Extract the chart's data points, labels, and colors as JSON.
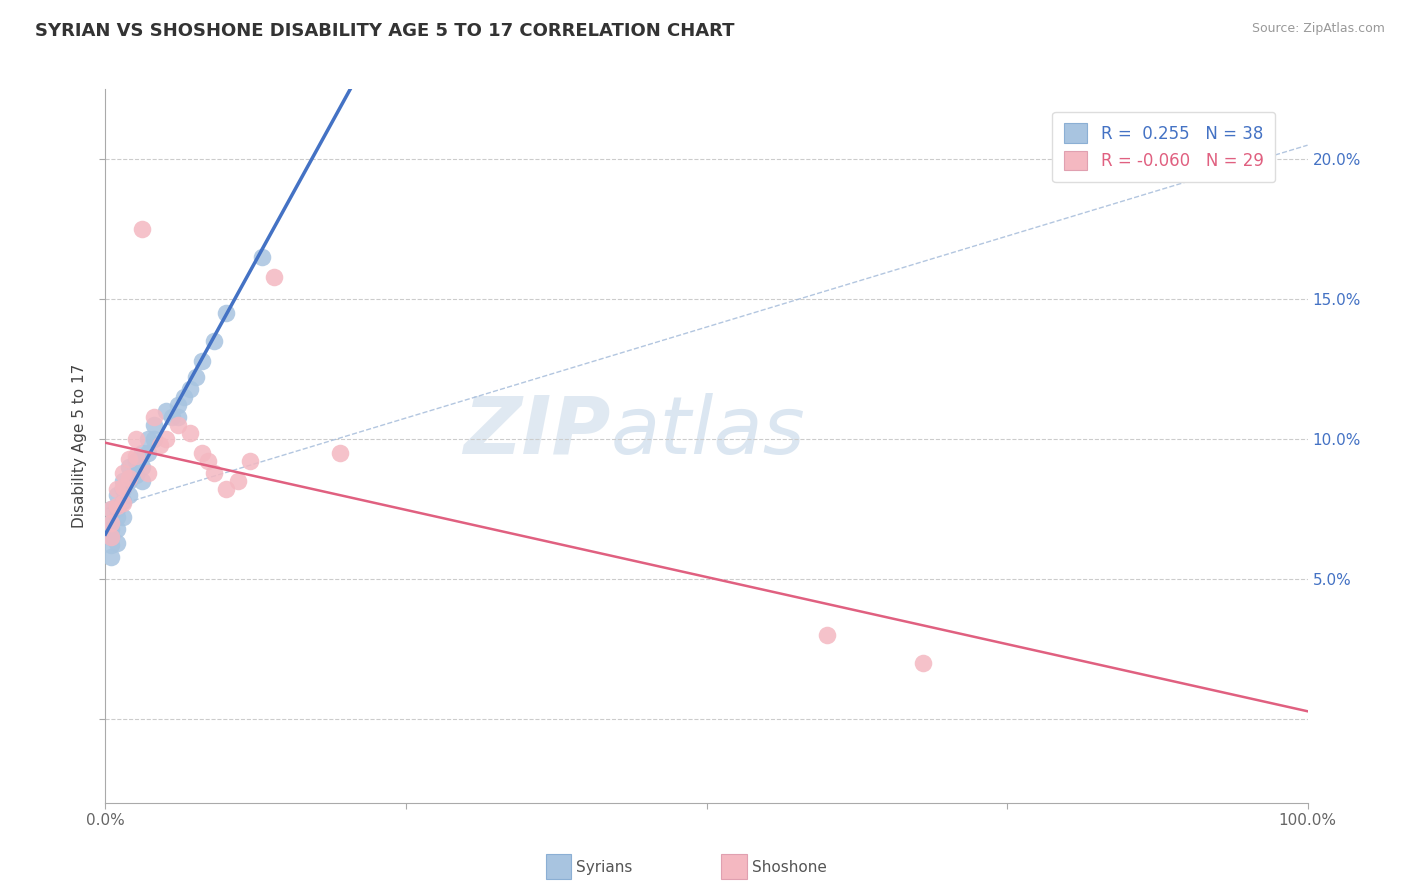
{
  "title": "SYRIAN VS SHOSHONE DISABILITY AGE 5 TO 17 CORRELATION CHART",
  "source": "Source: ZipAtlas.com",
  "ylabel": "Disability Age 5 to 17",
  "xlim": [
    0.0,
    1.0
  ],
  "ylim": [
    -0.03,
    0.225
  ],
  "xticks": [
    0.0,
    0.25,
    0.5,
    0.75,
    1.0
  ],
  "xticklabels": [
    "0.0%",
    "",
    "",
    "",
    "100.0%"
  ],
  "yticks": [
    0.0,
    0.05,
    0.1,
    0.15,
    0.2
  ],
  "ytick_right_labels": [
    "",
    "5.0%",
    "10.0%",
    "15.0%",
    "20.0%"
  ],
  "legend_R_syrian": "0.255",
  "legend_N_syrian": "38",
  "legend_R_shoshone": "-0.060",
  "legend_N_shoshone": "29",
  "color_syrian": "#a8c4e0",
  "color_shoshone": "#f4b8c1",
  "color_line_syrian": "#4472c4",
  "color_line_shoshone": "#e06080",
  "syrian_x": [
    0.005,
    0.005,
    0.005,
    0.005,
    0.005,
    0.005,
    0.01,
    0.01,
    0.01,
    0.01,
    0.01,
    0.015,
    0.015,
    0.015,
    0.015,
    0.02,
    0.02,
    0.02,
    0.025,
    0.025,
    0.03,
    0.03,
    0.03,
    0.035,
    0.035,
    0.04,
    0.04,
    0.05,
    0.055,
    0.06,
    0.06,
    0.065,
    0.07,
    0.075,
    0.08,
    0.09,
    0.1,
    0.13
  ],
  "syrian_y": [
    0.075,
    0.07,
    0.068,
    0.065,
    0.062,
    0.058,
    0.08,
    0.075,
    0.072,
    0.068,
    0.063,
    0.085,
    0.082,
    0.078,
    0.072,
    0.09,
    0.085,
    0.08,
    0.092,
    0.087,
    0.095,
    0.09,
    0.085,
    0.1,
    0.095,
    0.105,
    0.1,
    0.11,
    0.108,
    0.112,
    0.108,
    0.115,
    0.118,
    0.122,
    0.128,
    0.135,
    0.145,
    0.165
  ],
  "shoshone_x": [
    0.005,
    0.005,
    0.005,
    0.01,
    0.01,
    0.015,
    0.015,
    0.015,
    0.02,
    0.02,
    0.025,
    0.025,
    0.03,
    0.035,
    0.04,
    0.045,
    0.05,
    0.06,
    0.07,
    0.08,
    0.085,
    0.09,
    0.1,
    0.11,
    0.12,
    0.14,
    0.195,
    0.6,
    0.68
  ],
  "shoshone_y": [
    0.075,
    0.07,
    0.065,
    0.082,
    0.076,
    0.088,
    0.083,
    0.077,
    0.093,
    0.086,
    0.1,
    0.094,
    0.175,
    0.088,
    0.108,
    0.098,
    0.1,
    0.105,
    0.102,
    0.095,
    0.092,
    0.088,
    0.082,
    0.085,
    0.092,
    0.158,
    0.095,
    0.03,
    0.02
  ]
}
